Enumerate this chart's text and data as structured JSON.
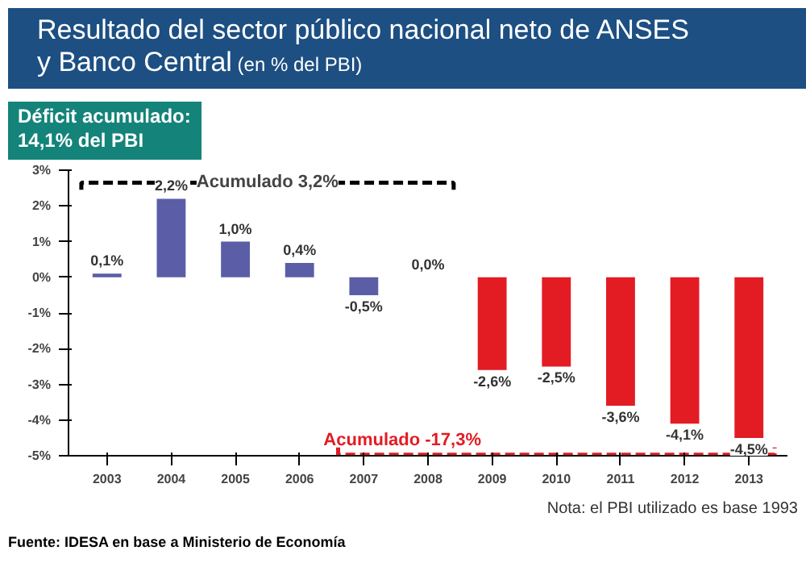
{
  "chart_data": {
    "type": "bar",
    "title": "Resultado del sector público nacional neto de ANSES y Banco Central",
    "subtitle": "(en % del PBI)",
    "categories": [
      "2003",
      "2004",
      "2005",
      "2006",
      "2007",
      "2008",
      "2009",
      "2010",
      "2011",
      "2012",
      "2013"
    ],
    "values": [
      0.1,
      2.2,
      1.0,
      0.4,
      -0.5,
      0.0,
      -2.6,
      -2.5,
      -3.6,
      -4.1,
      -4.5
    ],
    "colors": [
      "#5b5ea6",
      "#5b5ea6",
      "#5b5ea6",
      "#5b5ea6",
      "#5b5ea6",
      "#5b5ea6",
      "#e31b23",
      "#e31b23",
      "#e31b23",
      "#e31b23",
      "#e31b23"
    ],
    "value_labels": [
      "0,1%",
      "2,2%",
      "1,0%",
      "0,4%",
      "-0,5%",
      "0,0%",
      "-2,6%",
      "-2,5%",
      "-3,6%",
      "-4,1%",
      "-4,5%"
    ],
    "ylim": [
      -5,
      3
    ],
    "yticks": [
      {
        "value": -5,
        "label": "-5%"
      },
      {
        "value": -4,
        "label": "-4%"
      },
      {
        "value": -3,
        "label": "-3%"
      },
      {
        "value": -2,
        "label": "-2%"
      },
      {
        "value": -1,
        "label": "-1%"
      },
      {
        "value": 0,
        "label": "0%"
      },
      {
        "value": 1,
        "label": "1%"
      },
      {
        "value": 2,
        "label": "2%"
      },
      {
        "value": 3,
        "label": "3%"
      }
    ],
    "annotations": [
      "Déficit acumulado:\n14,1% del PBI",
      "Acumulado 3,2%",
      "Acumulado -17,3%",
      "Nota: el PBI utilizado es base 1993",
      "Fuente: IDESA en base a Ministerio de Economía"
    ]
  }
}
